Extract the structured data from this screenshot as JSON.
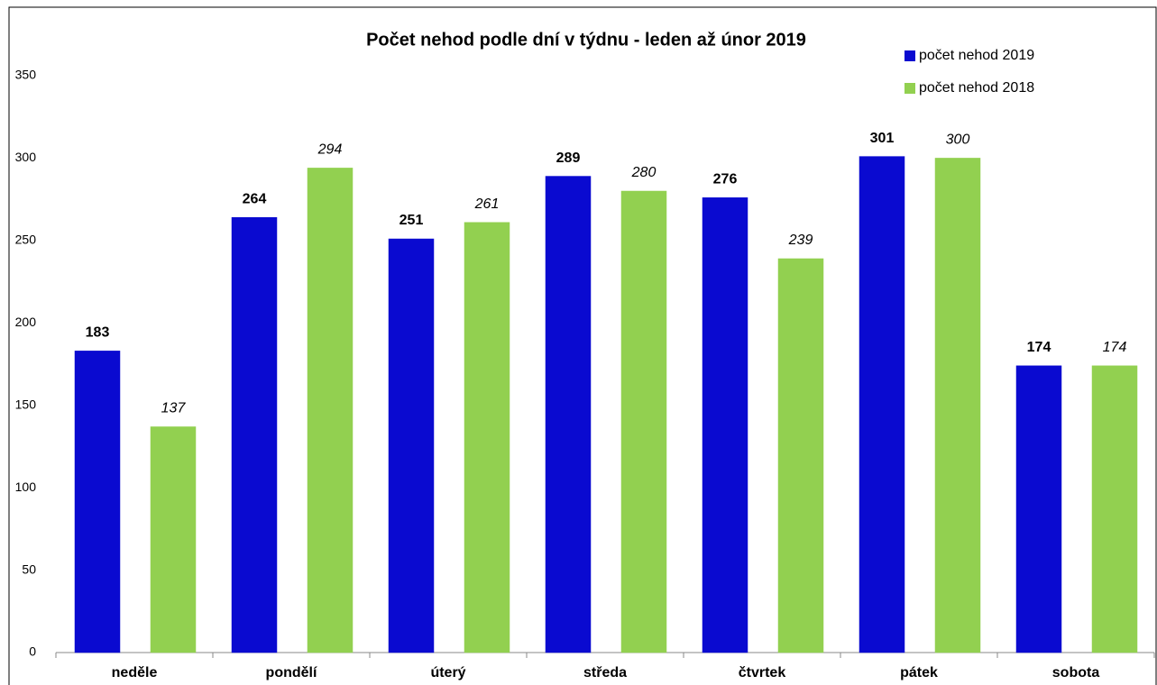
{
  "chart_data": {
    "type": "bar",
    "title": "Počet nehod podle dní v týdnu - leden až únor 2019",
    "categories": [
      "neděle",
      "pondělí",
      "úterý",
      "středa",
      "čtvrtek",
      "pátek",
      "sobota"
    ],
    "series": [
      {
        "name": "počet nehod 2019",
        "color": "#0a0ad0",
        "values": [
          183,
          264,
          251,
          289,
          276,
          301,
          174
        ]
      },
      {
        "name": "počet nehod 2018",
        "color": "#92d050",
        "values": [
          137,
          294,
          261,
          280,
          239,
          300,
          174
        ]
      }
    ],
    "ylim": [
      0,
      350
    ],
    "yticks": [
      0,
      50,
      100,
      150,
      200,
      250,
      300,
      350
    ],
    "grid": false,
    "legend": "top-right"
  }
}
